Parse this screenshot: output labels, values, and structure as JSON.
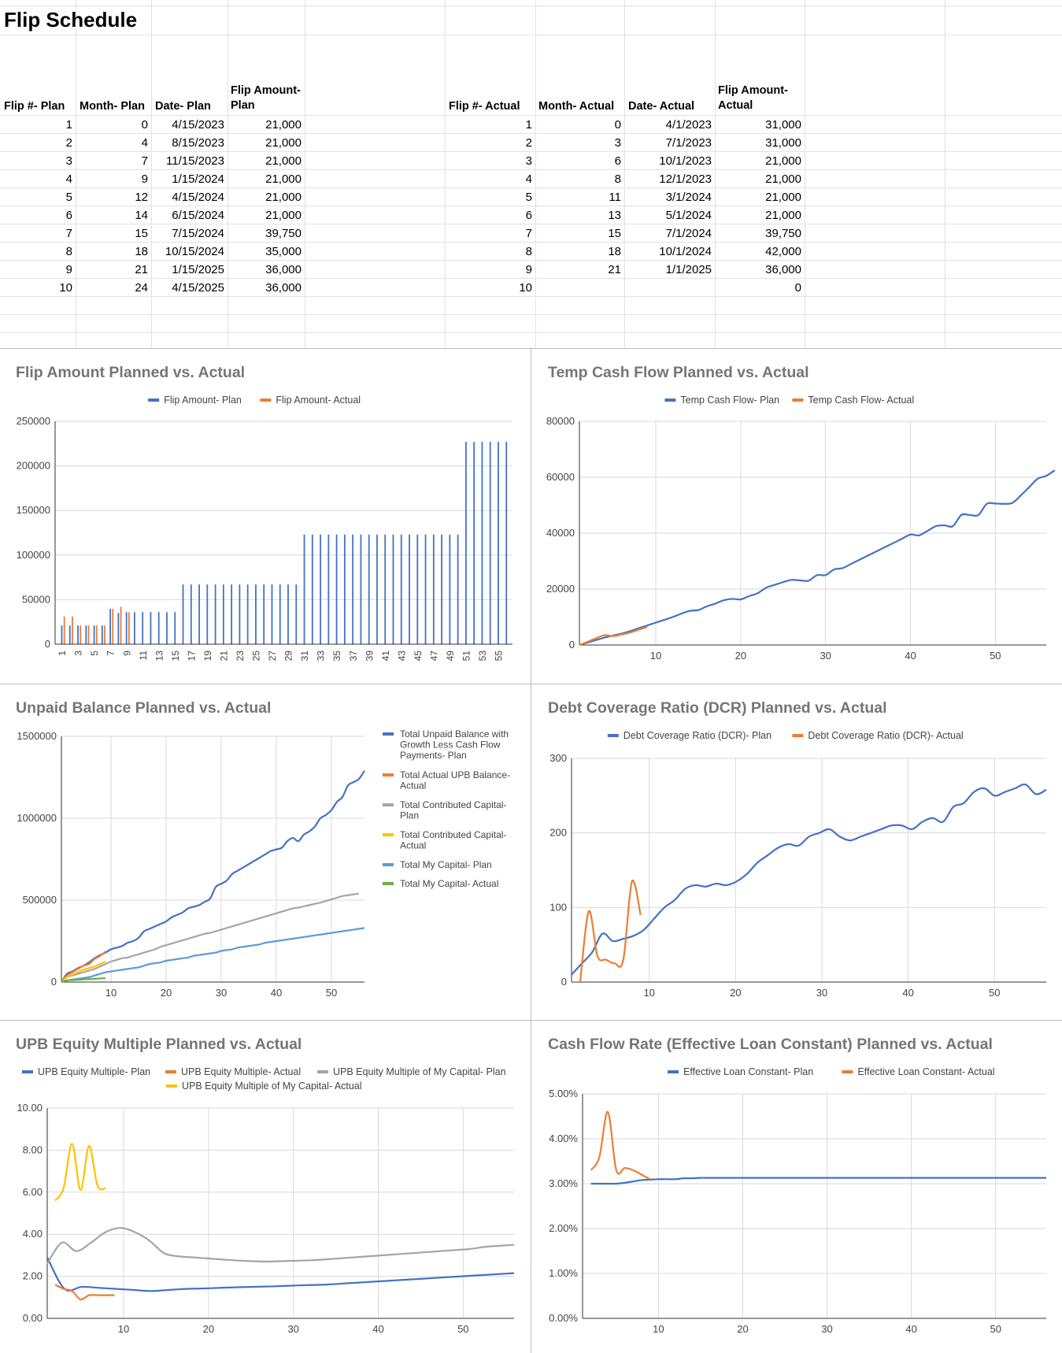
{
  "sheet": {
    "title": "Flip Schedule",
    "plan_headers": [
      "Flip #- Plan",
      "Month- Plan",
      "Date- Plan",
      "Flip Amount-\nPlan"
    ],
    "actual_headers": [
      "Flip #- Actual",
      "Month- Actual",
      "Date- Actual",
      "Flip Amount-\nActual"
    ],
    "plan_rows": [
      [
        "1",
        "0",
        "4/15/2023",
        "21,000"
      ],
      [
        "2",
        "4",
        "8/15/2023",
        "21,000"
      ],
      [
        "3",
        "7",
        "11/15/2023",
        "21,000"
      ],
      [
        "4",
        "9",
        "1/15/2024",
        "21,000"
      ],
      [
        "5",
        "12",
        "4/15/2024",
        "21,000"
      ],
      [
        "6",
        "14",
        "6/15/2024",
        "21,000"
      ],
      [
        "7",
        "15",
        "7/15/2024",
        "39,750"
      ],
      [
        "8",
        "18",
        "10/15/2024",
        "35,000"
      ],
      [
        "9",
        "21",
        "1/15/2025",
        "36,000"
      ],
      [
        "10",
        "24",
        "4/15/2025",
        "36,000"
      ]
    ],
    "actual_rows": [
      [
        "1",
        "0",
        "4/1/2023",
        "31,000"
      ],
      [
        "2",
        "3",
        "7/1/2023",
        "31,000"
      ],
      [
        "3",
        "6",
        "10/1/2023",
        "21,000"
      ],
      [
        "4",
        "8",
        "12/1/2023",
        "21,000"
      ],
      [
        "5",
        "11",
        "3/1/2024",
        "21,000"
      ],
      [
        "6",
        "13",
        "5/1/2024",
        "21,000"
      ],
      [
        "7",
        "15",
        "7/1/2024",
        "39,750"
      ],
      [
        "8",
        "18",
        "10/1/2024",
        "42,000"
      ],
      [
        "9",
        "21",
        "1/1/2025",
        "36,000"
      ],
      [
        "10",
        "",
        "",
        "0"
      ]
    ]
  },
  "colors": {
    "blue": "#4472c4",
    "orange": "#ed7d31",
    "gray": "#a5a5a5",
    "yellow": "#ffc000",
    "lightblue": "#5b9bd5",
    "green": "#70ad47"
  },
  "chart_data": [
    {
      "id": "flip",
      "type": "bar",
      "title": "Flip Amount Planned vs. Actual",
      "legend": [
        "Flip Amount- Plan",
        "Flip Amount- Actual"
      ],
      "ylim": [
        0,
        250000
      ],
      "yticks": [
        "0",
        "50000",
        "100000",
        "150000",
        "200000",
        "250000"
      ],
      "xticks": [
        "1",
        "3",
        "5",
        "7",
        "9",
        "11",
        "13",
        "15",
        "17",
        "19",
        "21",
        "23",
        "25",
        "27",
        "29",
        "31",
        "33",
        "35",
        "37",
        "39",
        "41",
        "43",
        "45",
        "47",
        "49",
        "51",
        "53",
        "55"
      ],
      "plan_levels": [
        [
          1,
          6,
          21000
        ],
        [
          7,
          7,
          39750
        ],
        [
          8,
          8,
          35000
        ],
        [
          9,
          15,
          36000
        ],
        [
          16,
          30,
          67000
        ],
        [
          31,
          50,
          123000
        ],
        [
          51,
          56,
          227000
        ]
      ],
      "actual_values": [
        31000,
        31000,
        21000,
        21000,
        21000,
        21000,
        39750,
        42000,
        36000
      ]
    },
    {
      "id": "temp",
      "type": "line",
      "title": "Temp Cash Flow Planned vs. Actual",
      "legend": [
        "Temp Cash Flow- Plan",
        "Temp Cash Flow- Actual"
      ],
      "ylim": [
        0,
        80000
      ],
      "yticks": [
        "0",
        "20000",
        "40000",
        "60000",
        "80000"
      ],
      "xticks": [
        "10",
        "20",
        "30",
        "40",
        "50"
      ],
      "plan": [
        0,
        900,
        1800,
        2700,
        3400,
        4100,
        5000,
        6000,
        7000,
        8000,
        9000,
        10000,
        11200,
        12200,
        12500,
        13800,
        14800,
        16000,
        16500,
        16300,
        17500,
        18500,
        20500,
        21500,
        22500,
        23300,
        23100,
        23000,
        25000,
        25000,
        27000,
        27500,
        29000,
        30500,
        32000,
        33500,
        35000,
        36500,
        38000,
        39500,
        39200,
        40800,
        42500,
        42800,
        42500,
        46500,
        46500,
        46500,
        50500,
        50600,
        50500,
        50800,
        53500,
        56500,
        59500,
        60500,
        62500
      ],
      "actual": [
        0,
        1200,
        2500,
        3500,
        3200,
        3800,
        4500,
        5500,
        6500
      ]
    },
    {
      "id": "upb",
      "type": "line",
      "title": "Unpaid Balance Planned vs. Actual",
      "legend": [
        "Total Unpaid Balance with Growth Less Cash Flow Payments- Plan",
        "Total Actual UPB Balance- Actual",
        "Total Contributed Capital- Plan",
        "Total Contributed Capital- Actual",
        "Total My Capital- Plan",
        "Total My Capital- Actual"
      ],
      "ylim": [
        0,
        1500000
      ],
      "yticks": [
        "0",
        "500000",
        "1000000",
        "1500000"
      ],
      "xticks": [
        "10",
        "20",
        "30",
        "40",
        "50"
      ],
      "series": [
        {
          "name": "plan_upb",
          "values": [
            0,
            50000,
            65000,
            85000,
            100000,
            120000,
            145000,
            165000,
            180000,
            200000,
            210000,
            220000,
            240000,
            250000,
            270000,
            310000,
            325000,
            340000,
            355000,
            370000,
            395000,
            410000,
            425000,
            450000,
            460000,
            470000,
            490000,
            510000,
            580000,
            600000,
            620000,
            660000,
            680000,
            700000,
            720000,
            740000,
            760000,
            780000,
            800000,
            810000,
            820000,
            860000,
            880000,
            860000,
            900000,
            920000,
            950000,
            1000000,
            1020000,
            1050000,
            1100000,
            1130000,
            1200000,
            1220000,
            1240000,
            1290000
          ]
        },
        {
          "name": "actual_upb",
          "values": [
            0,
            40000,
            60000,
            80000,
            100000,
            110000,
            140000,
            160000,
            185000
          ]
        },
        {
          "name": "plan_cc",
          "values": [
            0,
            30000,
            40000,
            50000,
            60000,
            70000,
            80000,
            95000,
            110000,
            125000,
            135000,
            145000,
            150000,
            160000,
            170000,
            180000,
            190000,
            200000,
            215000,
            225000,
            235000,
            245000,
            255000,
            265000,
            275000,
            285000,
            295000,
            300000,
            310000,
            320000,
            330000,
            340000,
            350000,
            360000,
            370000,
            380000,
            390000,
            400000,
            410000,
            420000,
            430000,
            440000,
            450000,
            455000,
            462000,
            470000,
            478000,
            485000,
            495000,
            505000,
            515000,
            525000,
            530000,
            535000,
            540000
          ]
        },
        {
          "name": "actual_cc",
          "values": [
            0,
            30000,
            45000,
            60000,
            75000,
            85000,
            95000,
            110000,
            125000
          ]
        },
        {
          "name": "plan_mine",
          "values": [
            0,
            10000,
            15000,
            20000,
            25000,
            30000,
            40000,
            50000,
            60000,
            65000,
            70000,
            75000,
            80000,
            85000,
            90000,
            100000,
            110000,
            115000,
            120000,
            130000,
            135000,
            140000,
            145000,
            150000,
            160000,
            165000,
            170000,
            175000,
            180000,
            190000,
            195000,
            200000,
            210000,
            215000,
            220000,
            225000,
            230000,
            240000,
            245000,
            250000,
            255000,
            260000,
            265000,
            270000,
            275000,
            280000,
            285000,
            290000,
            295000,
            300000,
            305000,
            310000,
            315000,
            320000,
            325000,
            330000
          ]
        },
        {
          "name": "actual_mine",
          "values": [
            0,
            10000,
            12000,
            14000,
            16000,
            18000,
            20000,
            22000,
            24000
          ]
        }
      ]
    },
    {
      "id": "dcr",
      "type": "line",
      "title": "Debt Coverage Ratio (DCR) Planned vs. Actual",
      "legend": [
        "Debt Coverage Ratio (DCR)- Plan",
        "Debt Coverage Ratio (DCR)- Actual"
      ],
      "ylim": [
        0,
        300
      ],
      "yticks": [
        "0",
        "100",
        "200",
        "300"
      ],
      "xticks": [
        "10",
        "20",
        "30",
        "40",
        "50"
      ],
      "plan": [
        10,
        25,
        40,
        65,
        55,
        58,
        62,
        70,
        85,
        100,
        110,
        125,
        130,
        128,
        132,
        130,
        135,
        145,
        160,
        170,
        180,
        185,
        183,
        195,
        200,
        205,
        195,
        190,
        195,
        200,
        205,
        210,
        210,
        205,
        215,
        220,
        215,
        235,
        240,
        255,
        260,
        250,
        255,
        260,
        265,
        252,
        258
      ],
      "actual": [
        0,
        95,
        35,
        30,
        25,
        30,
        135,
        90
      ]
    },
    {
      "id": "equity",
      "type": "line",
      "title": "UPB Equity Multiple Planned vs. Actual",
      "legend": [
        "UPB Equity Multiple- Plan",
        "UPB Equity Multiple- Actual",
        "UPB Equity Multiple of My Capital- Plan",
        "UPB Equity Multiple of My Capital- Actual"
      ],
      "ylim": [
        0,
        10
      ],
      "yticks": [
        "0.00",
        "2.00",
        "4.00",
        "6.00",
        "8.00",
        "10.00"
      ],
      "xticks": [
        "10",
        "20",
        "30",
        "40",
        "50"
      ],
      "series": [
        {
          "name": "plan",
          "values": [
            2.9,
            1.4,
            1.5,
            1.45,
            1.4,
            1.35,
            1.3,
            1.35,
            1.4,
            1.42,
            1.45,
            1.48,
            1.5,
            1.52,
            1.55,
            1.58,
            1.6,
            1.65,
            1.7,
            1.75,
            1.8,
            1.85,
            1.9,
            1.95,
            2.0,
            2.05,
            2.1,
            2.15
          ]
        },
        {
          "name": "actual",
          "values": [
            1.6,
            1.4,
            1.3,
            0.9,
            1.1,
            1.1,
            1.1,
            1.1
          ]
        },
        {
          "name": "mine_plan",
          "values": [
            2.6,
            3.6,
            3.2,
            3.6,
            4.1,
            4.3,
            4.1,
            3.7,
            3.1,
            2.95,
            2.9,
            2.85,
            2.8,
            2.75,
            2.72,
            2.7,
            2.72,
            2.74,
            2.76,
            2.8,
            2.85,
            2.9,
            2.95,
            3.0,
            3.05,
            3.1,
            3.15,
            3.2,
            3.25,
            3.3,
            3.4,
            3.45,
            3.5
          ]
        },
        {
          "name": "mine_actual",
          "values": [
            5.6,
            6.2,
            8.3,
            6.1,
            8.2,
            6.3,
            6.2
          ]
        }
      ]
    },
    {
      "id": "loan",
      "type": "line",
      "title": "Cash Flow Rate (Effective Loan Constant) Planned vs. Actual",
      "legend": [
        "Effective Loan Constant- Plan",
        "Effective Loan Constant- Actual"
      ],
      "ylim": [
        0,
        5
      ],
      "yticks": [
        "0.00%",
        "1.00%",
        "2.00%",
        "3.00%",
        "4.00%",
        "5.00%"
      ],
      "xticks": [
        "10",
        "20",
        "30",
        "40",
        "50"
      ],
      "plan": [
        3.0,
        3.0,
        3.0,
        3.0,
        3.02,
        3.05,
        3.08,
        3.09,
        3.1,
        3.1,
        3.1,
        3.12,
        3.12,
        3.13,
        3.13,
        3.13,
        3.13,
        3.13,
        3.13,
        3.13,
        3.13,
        3.13,
        3.13,
        3.13,
        3.13,
        3.13,
        3.13,
        3.13,
        3.13,
        3.13,
        3.13,
        3.13,
        3.13,
        3.13,
        3.13,
        3.13,
        3.13,
        3.13,
        3.13,
        3.13,
        3.13,
        3.13,
        3.13,
        3.13,
        3.13,
        3.13,
        3.13,
        3.13,
        3.13,
        3.13,
        3.13,
        3.13,
        3.13,
        3.13,
        3.13
      ],
      "actual": [
        3.3,
        3.6,
        4.6,
        3.3,
        3.35,
        3.3,
        3.2,
        3.1
      ]
    }
  ]
}
